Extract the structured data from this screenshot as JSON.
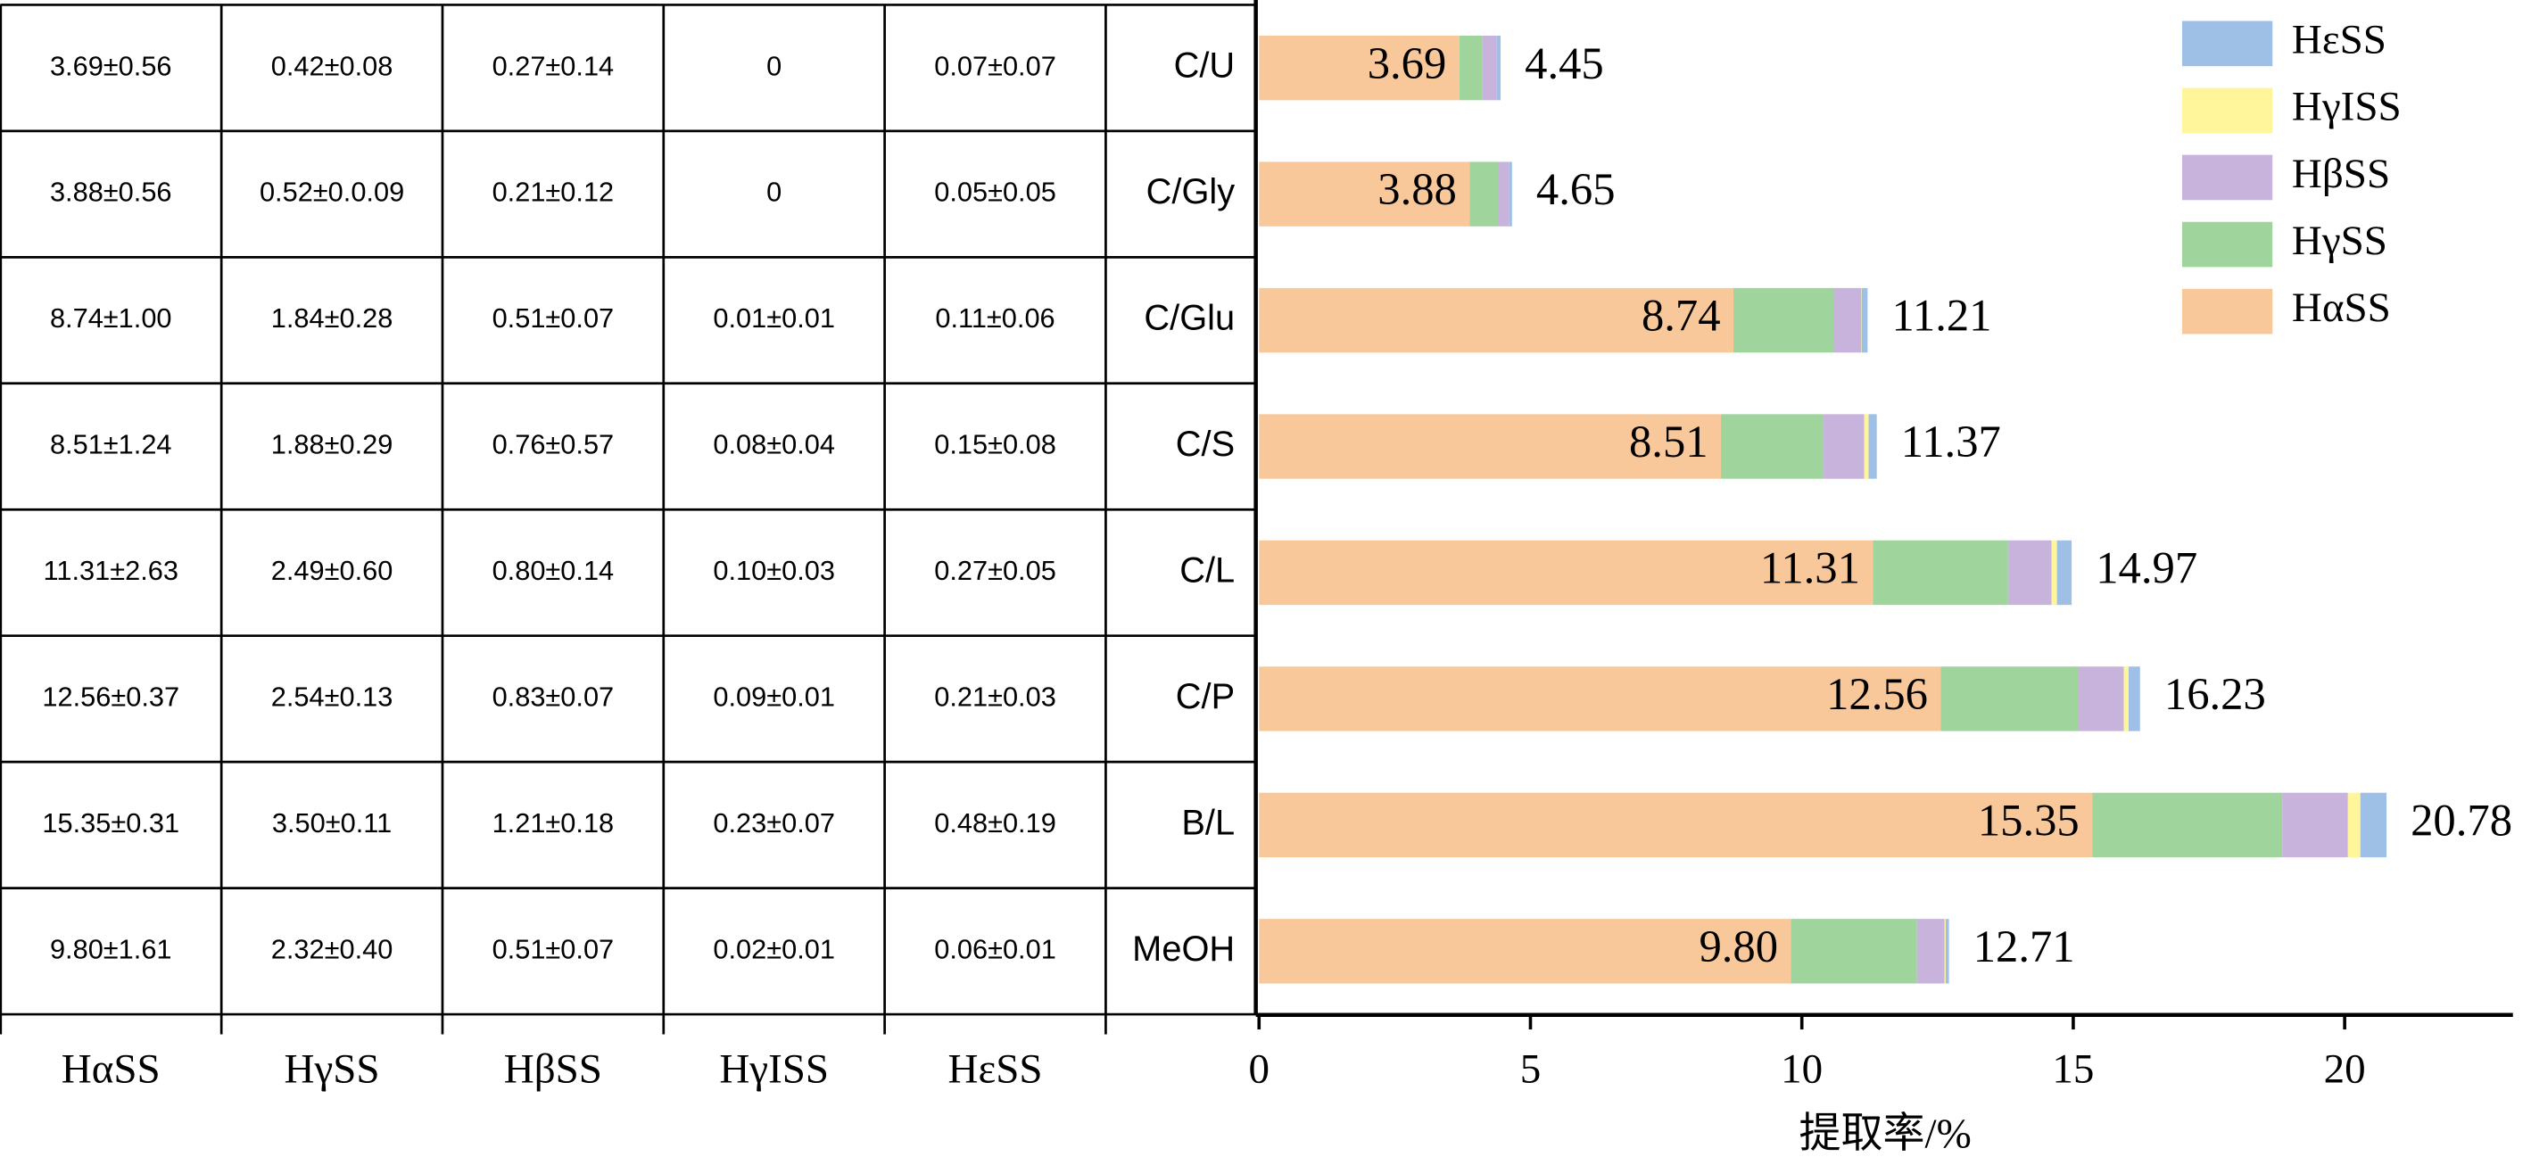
{
  "chart_data": {
    "type": "bar",
    "orientation": "horizontal",
    "stacked": true,
    "categories": [
      "C/U",
      "C/Gly",
      "C/Glu",
      "C/S",
      "C/L",
      "C/P",
      "B/L",
      "MeOH"
    ],
    "series": [
      {
        "name": "HαSS",
        "color": "#f8c89a",
        "values": [
          3.69,
          3.88,
          8.74,
          8.51,
          11.31,
          12.56,
          15.35,
          9.8
        ],
        "value_labels": [
          "3.69",
          "3.88",
          "8.74",
          "8.51",
          "11.31",
          "12.56",
          "15.35",
          "9.80"
        ]
      },
      {
        "name": "HγSS",
        "color": "#9fd49d",
        "values": [
          0.42,
          0.52,
          1.84,
          1.88,
          2.49,
          2.54,
          3.5,
          2.32
        ]
      },
      {
        "name": "HβSS",
        "color": "#c7b3dc",
        "values": [
          0.27,
          0.21,
          0.51,
          0.76,
          0.8,
          0.83,
          1.21,
          0.51
        ]
      },
      {
        "name": "HγISS",
        "color": "#fff59a",
        "values": [
          0,
          0,
          0.01,
          0.08,
          0.1,
          0.09,
          0.23,
          0.02
        ]
      },
      {
        "name": "HεSS",
        "color": "#9fc0e6",
        "values": [
          0.07,
          0.05,
          0.11,
          0.15,
          0.27,
          0.21,
          0.48,
          0.06
        ]
      }
    ],
    "totals": [
      4.45,
      4.65,
      11.21,
      11.37,
      14.97,
      16.23,
      20.78,
      12.71
    ],
    "xlim": [
      0,
      23.1
    ],
    "xticks": [
      0,
      5,
      10,
      15,
      20
    ],
    "xlabel": "提取率/%",
    "legend": "top-right",
    "table": [
      [
        "3.69±0.56",
        "0.42±0.08",
        "0.27±0.14",
        "0",
        "0.07±0.07"
      ],
      [
        "3.88±0.56",
        "0.52±0.0.09",
        "0.21±0.12",
        "0",
        "0.05±0.05"
      ],
      [
        "8.74±1.00",
        "1.84±0.28",
        "0.51±0.07",
        "0.01±0.01",
        "0.11±0.06"
      ],
      [
        "8.51±1.24",
        "1.88±0.29",
        "0.76±0.57",
        "0.08±0.04",
        "0.15±0.08"
      ],
      [
        "11.31±2.63",
        "2.49±0.60",
        "0.80±0.14",
        "0.10±0.03",
        "0.27±0.05"
      ],
      [
        "12.56±0.37",
        "2.54±0.13",
        "0.83±0.07",
        "0.09±0.01",
        "0.21±0.03"
      ],
      [
        "15.35±0.31",
        "3.50±0.11",
        "1.21±0.18",
        "0.23±0.07",
        "0.48±0.19"
      ],
      [
        "9.80±1.61",
        "2.32±0.40",
        "0.51±0.07",
        "0.02±0.01",
        "0.06±0.01"
      ]
    ]
  }
}
